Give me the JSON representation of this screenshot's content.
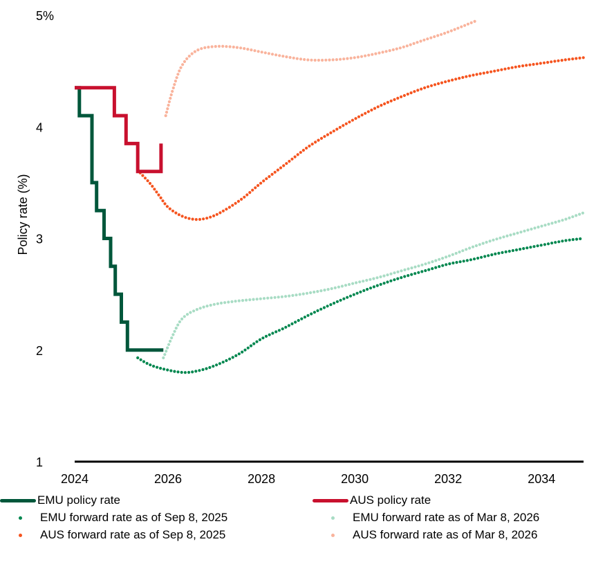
{
  "chart_data": {
    "type": "line",
    "title": "",
    "xlabel": "",
    "ylabel": "Policy rate (%)",
    "xlim": [
      2024,
      2034.9
    ],
    "ylim": [
      1,
      5
    ],
    "x_ticks": [
      2024,
      2026,
      2028,
      2030,
      2032,
      2034
    ],
    "y_ticks": [
      {
        "value": 1,
        "label": "1"
      },
      {
        "value": 2,
        "label": "2"
      },
      {
        "value": 3,
        "label": "3"
      },
      {
        "value": 4,
        "label": "4"
      },
      {
        "value": 5,
        "label": "5%"
      }
    ],
    "grid": false,
    "legend_position": "bottom",
    "series": [
      {
        "name": "EMU policy rate",
        "style": "step",
        "color": "#00573b",
        "points": [
          [
            2024.0,
            4.35
          ],
          [
            2024.1,
            4.35
          ],
          [
            2024.1,
            4.1
          ],
          [
            2024.37,
            4.1
          ],
          [
            2024.37,
            3.5
          ],
          [
            2024.47,
            3.5
          ],
          [
            2024.47,
            3.25
          ],
          [
            2024.63,
            3.25
          ],
          [
            2024.63,
            3.0
          ],
          [
            2024.77,
            3.0
          ],
          [
            2024.77,
            2.75
          ],
          [
            2024.87,
            2.75
          ],
          [
            2024.87,
            2.5
          ],
          [
            2025.0,
            2.5
          ],
          [
            2025.0,
            2.25
          ],
          [
            2025.13,
            2.25
          ],
          [
            2025.13,
            2.0
          ],
          [
            2025.9,
            2.0
          ]
        ]
      },
      {
        "name": "AUS policy rate",
        "style": "step",
        "color": "#c8102e",
        "points": [
          [
            2024.0,
            4.35
          ],
          [
            2024.85,
            4.35
          ],
          [
            2024.85,
            4.1
          ],
          [
            2025.1,
            4.1
          ],
          [
            2025.1,
            3.85
          ],
          [
            2025.35,
            3.85
          ],
          [
            2025.35,
            3.6
          ],
          [
            2025.85,
            3.6
          ],
          [
            2025.85,
            3.85
          ]
        ]
      },
      {
        "name": "EMU forward rate as of Sep 8, 2025",
        "style": "dots",
        "color": "#00874f",
        "points": [
          [
            2025.35,
            1.93
          ],
          [
            2025.6,
            1.87
          ],
          [
            2025.9,
            1.83
          ],
          [
            2026.3,
            1.8
          ],
          [
            2026.6,
            1.81
          ],
          [
            2027.0,
            1.86
          ],
          [
            2027.5,
            1.96
          ],
          [
            2028.0,
            2.1
          ],
          [
            2028.5,
            2.2
          ],
          [
            2029.0,
            2.31
          ],
          [
            2029.5,
            2.41
          ],
          [
            2030.0,
            2.5
          ],
          [
            2030.5,
            2.58
          ],
          [
            2031.0,
            2.65
          ],
          [
            2031.5,
            2.71
          ],
          [
            2032.0,
            2.77
          ],
          [
            2032.5,
            2.81
          ],
          [
            2033.0,
            2.86
          ],
          [
            2033.5,
            2.9
          ],
          [
            2034.0,
            2.94
          ],
          [
            2034.5,
            2.98
          ],
          [
            2034.9,
            3.0
          ]
        ]
      },
      {
        "name": "EMU forward rate as of Mar 8, 2026",
        "style": "dots",
        "color": "#a8dcc4",
        "points": [
          [
            2025.9,
            1.93
          ],
          [
            2026.1,
            2.13
          ],
          [
            2026.3,
            2.28
          ],
          [
            2026.6,
            2.36
          ],
          [
            2027.0,
            2.41
          ],
          [
            2027.5,
            2.44
          ],
          [
            2028.0,
            2.46
          ],
          [
            2028.5,
            2.48
          ],
          [
            2029.0,
            2.51
          ],
          [
            2029.5,
            2.55
          ],
          [
            2030.0,
            2.6
          ],
          [
            2030.5,
            2.65
          ],
          [
            2031.0,
            2.71
          ],
          [
            2031.5,
            2.77
          ],
          [
            2032.0,
            2.84
          ],
          [
            2032.5,
            2.92
          ],
          [
            2033.0,
            2.99
          ],
          [
            2033.5,
            3.05
          ],
          [
            2034.0,
            3.11
          ],
          [
            2034.5,
            3.17
          ],
          [
            2034.9,
            3.23
          ]
        ]
      },
      {
        "name": "AUS forward rate as of Sep 8, 2025",
        "style": "dots",
        "color": "#f5541f",
        "points": [
          [
            2025.35,
            3.61
          ],
          [
            2025.6,
            3.5
          ],
          [
            2025.8,
            3.39
          ],
          [
            2026.0,
            3.28
          ],
          [
            2026.3,
            3.2
          ],
          [
            2026.6,
            3.17
          ],
          [
            2026.9,
            3.19
          ],
          [
            2027.2,
            3.25
          ],
          [
            2027.6,
            3.36
          ],
          [
            2028.0,
            3.5
          ],
          [
            2028.5,
            3.66
          ],
          [
            2029.0,
            3.82
          ],
          [
            2029.5,
            3.95
          ],
          [
            2030.0,
            4.07
          ],
          [
            2030.5,
            4.18
          ],
          [
            2031.0,
            4.27
          ],
          [
            2031.5,
            4.35
          ],
          [
            2032.0,
            4.41
          ],
          [
            2032.5,
            4.46
          ],
          [
            2033.0,
            4.5
          ],
          [
            2033.5,
            4.54
          ],
          [
            2034.0,
            4.57
          ],
          [
            2034.5,
            4.6
          ],
          [
            2034.9,
            4.62
          ]
        ]
      },
      {
        "name": "AUS forward rate as of Mar 8, 2026",
        "style": "dots",
        "color": "#f9b39c",
        "points": [
          [
            2025.95,
            4.1
          ],
          [
            2026.1,
            4.33
          ],
          [
            2026.3,
            4.55
          ],
          [
            2026.6,
            4.68
          ],
          [
            2027.0,
            4.72
          ],
          [
            2027.5,
            4.71
          ],
          [
            2028.0,
            4.67
          ],
          [
            2028.5,
            4.63
          ],
          [
            2029.0,
            4.6
          ],
          [
            2029.5,
            4.6
          ],
          [
            2030.0,
            4.62
          ],
          [
            2030.5,
            4.66
          ],
          [
            2031.0,
            4.71
          ],
          [
            2031.5,
            4.78
          ],
          [
            2032.0,
            4.85
          ],
          [
            2032.6,
            4.95
          ]
        ]
      }
    ]
  }
}
